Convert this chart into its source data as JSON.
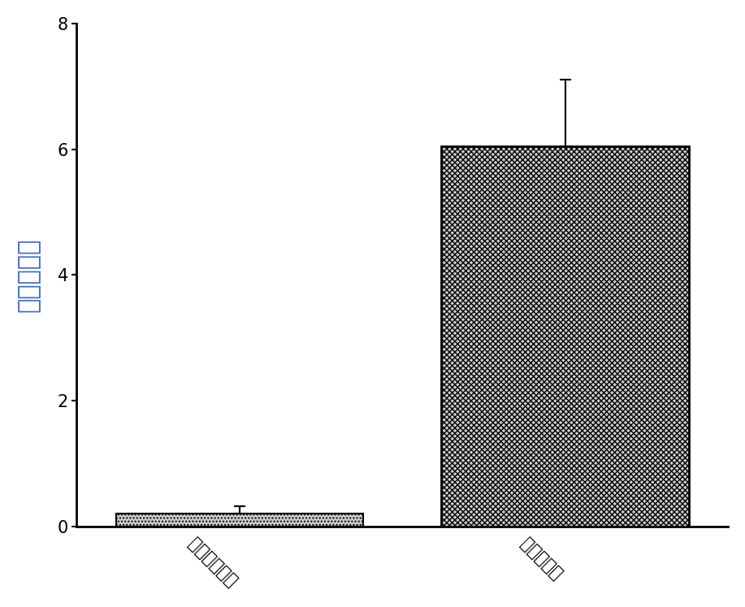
{
  "categories": [
    "癌旁对照组织",
    "肺鸞癌组织"
  ],
  "values": [
    0.2,
    6.05
  ],
  "errors": [
    0.12,
    1.05
  ],
  "ylabel": "相对表达量",
  "ylim": [
    0,
    8
  ],
  "yticks": [
    0,
    2,
    4,
    6,
    8
  ],
  "bar_width": 0.38,
  "background_color": "#ffffff",
  "tick_label_fontsize": 15,
  "ylabel_fontsize": 22,
  "ylabel_color": "#4169c8",
  "error_capsize": 5,
  "error_linewidth": 1.5,
  "spine_linewidth": 2.0
}
